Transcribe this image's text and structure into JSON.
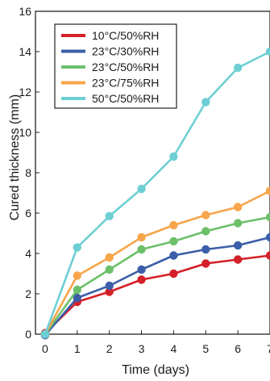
{
  "chart_data": {
    "type": "line",
    "xlabel": "Time (days)",
    "ylabel": "Cured thickness (mm)",
    "x": [
      0,
      1,
      2,
      3,
      4,
      5,
      6,
      7
    ],
    "xticks": [
      0,
      1,
      2,
      3,
      4,
      5,
      6,
      7
    ],
    "yticks": [
      0,
      2,
      4,
      6,
      8,
      10,
      12,
      14,
      16
    ],
    "xlim": [
      -0.3,
      7
    ],
    "ylim": [
      0,
      16
    ],
    "grid": false,
    "legend_position": "top-left",
    "series": [
      {
        "name": "10°C/50%RH",
        "color": "#d42028",
        "values": [
          0.05,
          1.6,
          2.1,
          2.7,
          3.0,
          3.5,
          3.7,
          3.9
        ]
      },
      {
        "name": "23°C/30%RH",
        "color": "#3b5ea8",
        "values": [
          -0.05,
          1.8,
          2.4,
          3.2,
          3.9,
          4.2,
          4.4,
          4.8
        ]
      },
      {
        "name": "23°C/50%RH",
        "color": "#6cc06a",
        "values": [
          0.0,
          2.2,
          3.2,
          4.2,
          4.6,
          5.1,
          5.5,
          5.8
        ]
      },
      {
        "name": "23°C/75%RH",
        "color": "#f7a54a",
        "values": [
          0.0,
          2.9,
          3.8,
          4.8,
          5.4,
          5.9,
          6.3,
          7.1
        ]
      },
      {
        "name": "50°C/50%RH",
        "color": "#6dcfd4",
        "values": [
          0.0,
          4.3,
          5.85,
          7.2,
          8.8,
          11.5,
          13.2,
          14.0
        ]
      }
    ]
  }
}
